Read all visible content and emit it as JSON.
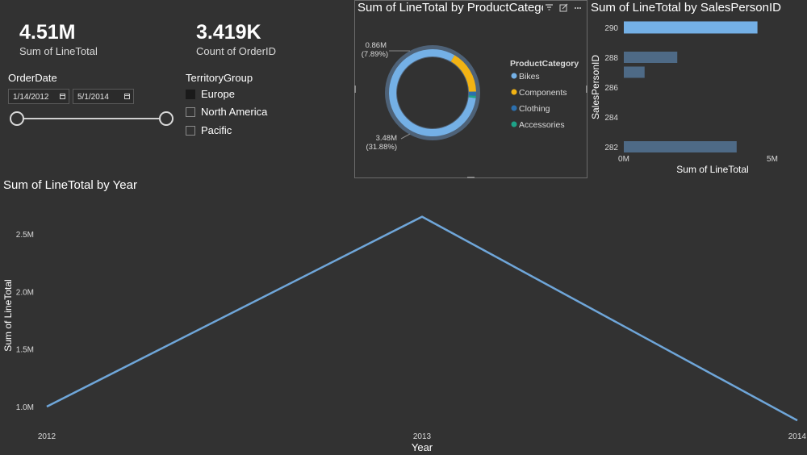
{
  "kpis": [
    {
      "value": "4.51M",
      "label": "Sum of LineTotal"
    },
    {
      "value": "3.419K",
      "label": "Count of OrderID"
    }
  ],
  "order_date_slicer": {
    "title": "OrderDate",
    "start": "1/14/2012",
    "end": "5/1/2014",
    "start_fraction": 0,
    "end_fraction": 1
  },
  "territory_slicer": {
    "title": "TerritoryGroup",
    "items": [
      {
        "label": "Europe",
        "checked": true
      },
      {
        "label": "North America",
        "checked": false
      },
      {
        "label": "Pacific",
        "checked": false
      }
    ]
  },
  "colors": {
    "background": "#323232",
    "bikes": "#74b0e6",
    "components": "#f2b314",
    "clothing": "#2c6fad",
    "accessories": "#1ea388",
    "bar": "#4e6a86",
    "bar_selected": "#74b0e6",
    "line": "#6fa6d9"
  },
  "donut": {
    "title": "Sum of LineTotal by ProductCatego",
    "legend_title": "ProductCategory",
    "icons": [
      "filter-icon",
      "focus-mode-icon",
      "more-options-icon"
    ],
    "label_top_value": "0.86M",
    "label_top_pct": "(7.89%)",
    "label_bottom_value": "3.48M",
    "label_bottom_pct": "(31.88%)"
  },
  "bar": {
    "title": "Sum of LineTotal by SalesPersonID"
  },
  "line": {
    "title": "Sum of LineTotal by Year"
  },
  "chart_data": [
    {
      "type": "pie",
      "title": "Sum of LineTotal by ProductCategory",
      "legend_title": "ProductCategory",
      "legend_position": "right",
      "categories": [
        "Bikes",
        "Components",
        "Clothing",
        "Accessories"
      ],
      "values": [
        81.5,
        16.1,
        1.6,
        0.8
      ],
      "unit": "percent"
    },
    {
      "type": "bar",
      "orientation": "horizontal",
      "title": "Sum of LineTotal by SalesPersonID",
      "xlabel": "Sum of LineTotal",
      "ylabel": "SalesPersonID",
      "categories": [
        290,
        288,
        287,
        282
      ],
      "values": [
        4.5,
        1.8,
        0.7,
        3.8
      ],
      "value_unit": "M",
      "xlim": [
        0,
        5
      ],
      "x_ticks": [
        "0M",
        "5M"
      ],
      "ylim": [
        281,
        291
      ],
      "y_ticks": [
        "282",
        "284",
        "286",
        "288",
        "290"
      ]
    },
    {
      "type": "line",
      "title": "Sum of LineTotal by Year",
      "xlabel": "Year",
      "ylabel": "Sum of LineTotal",
      "x": [
        2012,
        2013,
        2014
      ],
      "x_ticks": [
        "2012",
        "2013",
        "2014"
      ],
      "y": [
        1.0,
        2.65,
        0.88
      ],
      "value_unit": "M",
      "ylim": [
        0.85,
        2.7
      ],
      "y_ticks": [
        "1.0M",
        "1.5M",
        "2.0M",
        "2.5M"
      ]
    }
  ]
}
